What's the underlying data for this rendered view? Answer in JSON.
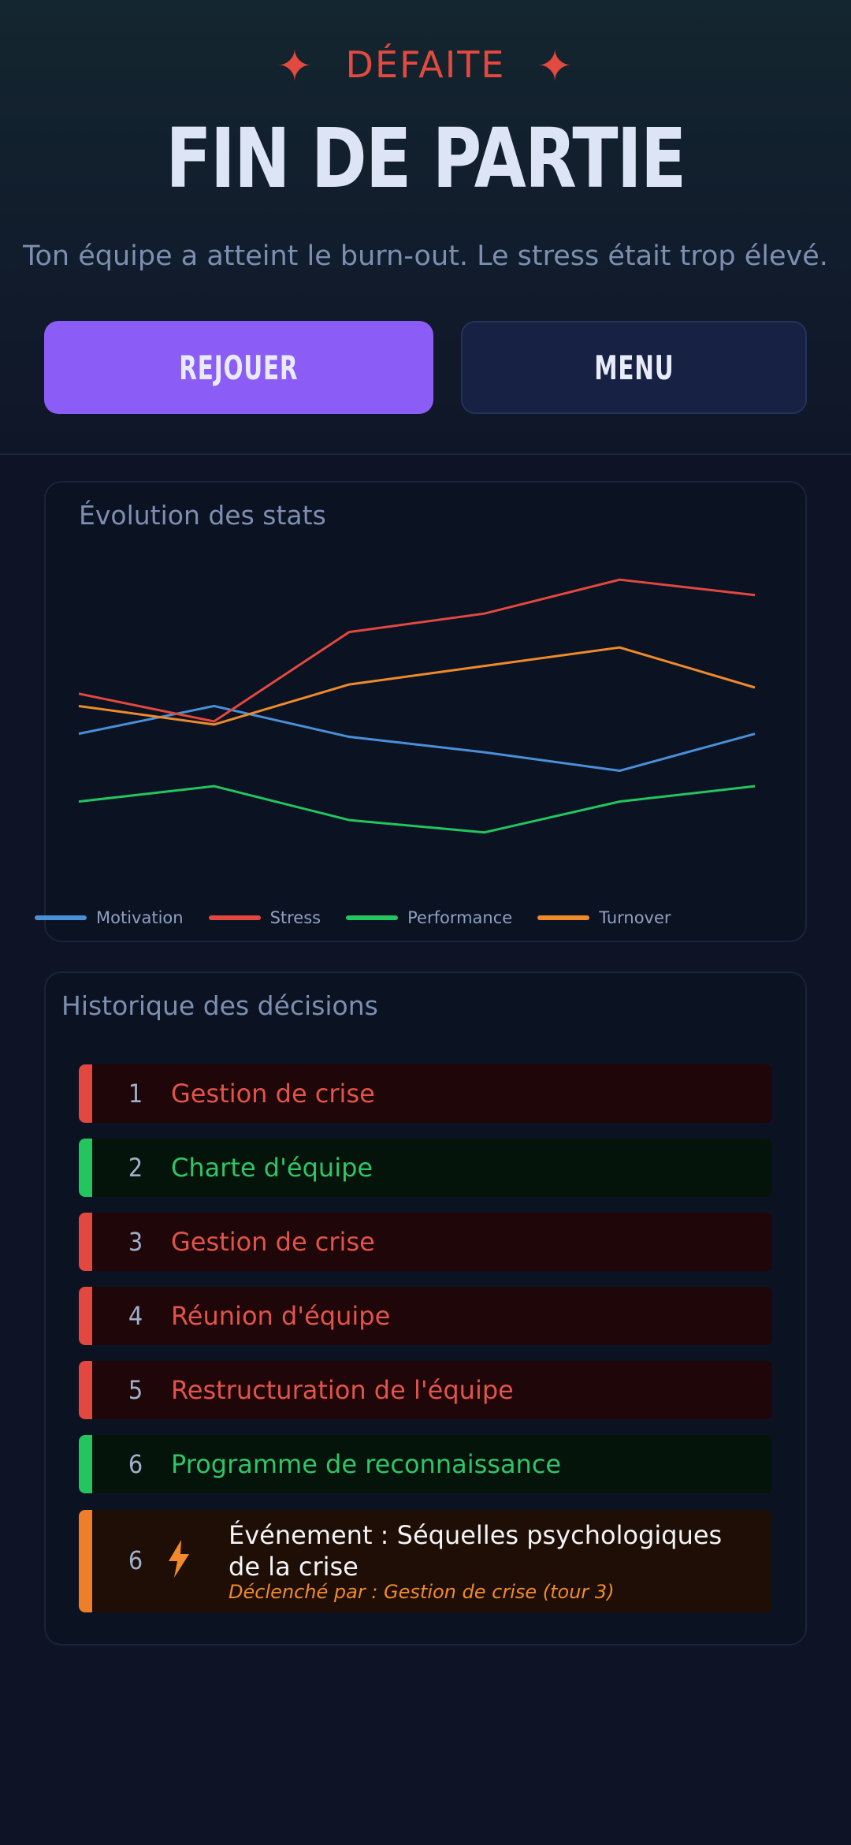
{
  "header": {
    "star_left": "✦",
    "status": "DÉFAITE",
    "star_right": "✦",
    "title": "FIN DE PARTIE",
    "subtitle": "Ton équipe a atteint le burn-out. Le stress était trop élevé."
  },
  "actions": {
    "replay_label": "REJOUER",
    "menu_label": "MENU"
  },
  "stats_card": {
    "title": "Évolution des stats"
  },
  "chart_data": {
    "type": "line",
    "title": "Évolution des stats",
    "x": [
      1,
      2,
      3,
      4,
      5,
      6
    ],
    "series": [
      {
        "name": "Motivation",
        "color": "#4a90d9",
        "values": [
          51,
          60,
          50,
          45,
          39,
          51
        ]
      },
      {
        "name": "Stress",
        "color": "#e2483f",
        "values": [
          64,
          55,
          84,
          90,
          101,
          96
        ]
      },
      {
        "name": "Performance",
        "color": "#22c55e",
        "values": [
          29,
          34,
          23,
          19,
          29,
          34
        ]
      },
      {
        "name": "Turnover",
        "color": "#ef8a2a",
        "values": [
          60,
          54,
          67,
          73,
          79,
          66
        ]
      }
    ],
    "ylim": [
      0,
      110
    ],
    "grid": false,
    "legend_position": "bottom-left"
  },
  "history": {
    "title": "Historique des décisions",
    "items": [
      {
        "turn": "1",
        "label": "Gestion de crise",
        "status": "negative"
      },
      {
        "turn": "2",
        "label": "Charte d'équipe",
        "status": "positive"
      },
      {
        "turn": "3",
        "label": "Gestion de crise",
        "status": "negative"
      },
      {
        "turn": "4",
        "label": "Réunion d'équipe",
        "status": "negative"
      },
      {
        "turn": "5",
        "label": "Restructuration de l'équipe",
        "status": "negative"
      },
      {
        "turn": "6",
        "label": "Programme de reconnaissance",
        "status": "positive"
      }
    ],
    "event": {
      "turn": "6",
      "icon": "lightning-icon",
      "title": "Événement : Séquelles psychologiques de la crise",
      "subtitle": "Déclenché par : Gestion de crise (tour 3)"
    }
  }
}
